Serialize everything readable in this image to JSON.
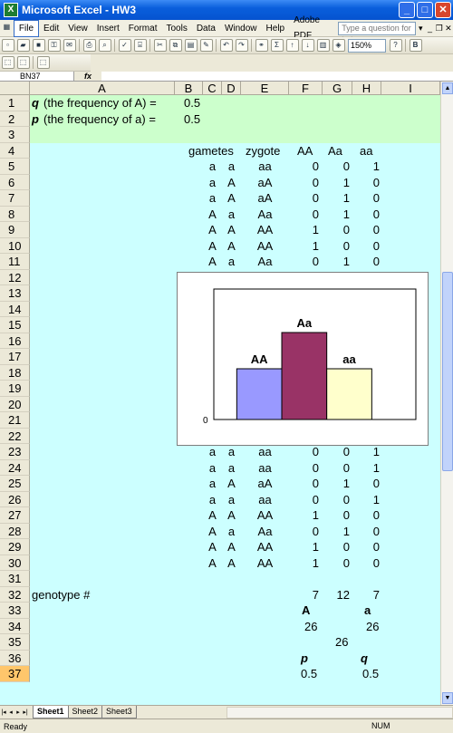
{
  "window": {
    "title": "Microsoft Excel - HW3"
  },
  "menu": {
    "items": [
      "File",
      "Edit",
      "View",
      "Insert",
      "Format",
      "Tools",
      "Data",
      "Window",
      "Help",
      "Adobe PDF"
    ],
    "help_placeholder": "Type a question for help"
  },
  "toolbar": {
    "zoom": "150%"
  },
  "formula_bar": {
    "name_box": "BN37",
    "fx": "fx",
    "value": ""
  },
  "columns": [
    "A",
    "B",
    "C",
    "D",
    "E",
    "F",
    "G",
    "H",
    "I"
  ],
  "rows": [
    "1",
    "2",
    "3",
    "4",
    "5",
    "6",
    "7",
    "8",
    "9",
    "10",
    "11",
    "12",
    "13",
    "14",
    "15",
    "16",
    "17",
    "18",
    "19",
    "20",
    "21",
    "22",
    "23",
    "24",
    "25",
    "26",
    "27",
    "28",
    "29",
    "30",
    "31",
    "32",
    "33",
    "34",
    "35",
    "36",
    "37"
  ],
  "cells": {
    "r1": {
      "label_sym": "q",
      "label": "(the frequency of A) =",
      "value": "0.5"
    },
    "r2": {
      "label_sym": "p",
      "label": "(the frequency of a) =",
      "value": "0.5"
    },
    "r4": {
      "gametes": "gametes",
      "zygote": "zygote",
      "AA": "AA",
      "Aa": "Aa",
      "aa": "aa"
    },
    "table": [
      {
        "g1": "a",
        "g2": "a",
        "z": "aa",
        "AA": "0",
        "Aa": "0",
        "aa": "1"
      },
      {
        "g1": "a",
        "g2": "A",
        "z": "aA",
        "AA": "0",
        "Aa": "1",
        "aa": "0"
      },
      {
        "g1": "a",
        "g2": "A",
        "z": "aA",
        "AA": "0",
        "Aa": "1",
        "aa": "0"
      },
      {
        "g1": "A",
        "g2": "a",
        "z": "Aa",
        "AA": "0",
        "Aa": "1",
        "aa": "0"
      },
      {
        "g1": "A",
        "g2": "A",
        "z": "AA",
        "AA": "1",
        "Aa": "0",
        "aa": "0"
      },
      {
        "g1": "A",
        "g2": "A",
        "z": "AA",
        "AA": "1",
        "Aa": "0",
        "aa": "0"
      },
      {
        "g1": "A",
        "g2": "a",
        "z": "Aa",
        "AA": "0",
        "Aa": "1",
        "aa": "0"
      }
    ],
    "table2": [
      {
        "g1": "a",
        "g2": "a",
        "z": "aa",
        "AA": "0",
        "Aa": "0",
        "aa": "1"
      },
      {
        "g1": "a",
        "g2": "a",
        "z": "aa",
        "AA": "0",
        "Aa": "0",
        "aa": "1"
      },
      {
        "g1": "a",
        "g2": "A",
        "z": "aA",
        "AA": "0",
        "Aa": "1",
        "aa": "0"
      },
      {
        "g1": "a",
        "g2": "a",
        "z": "aa",
        "AA": "0",
        "Aa": "0",
        "aa": "1"
      },
      {
        "g1": "A",
        "g2": "A",
        "z": "AA",
        "AA": "1",
        "Aa": "0",
        "aa": "0"
      },
      {
        "g1": "A",
        "g2": "a",
        "z": "Aa",
        "AA": "0",
        "Aa": "1",
        "aa": "0"
      },
      {
        "g1": "A",
        "g2": "A",
        "z": "AA",
        "AA": "1",
        "Aa": "0",
        "aa": "0"
      },
      {
        "g1": "A",
        "g2": "A",
        "z": "AA",
        "AA": "1",
        "Aa": "0",
        "aa": "0"
      }
    ],
    "r32": {
      "label": "genotype #",
      "AA": "7",
      "Aa": "12",
      "aa": "7"
    },
    "r33": {
      "A": "A",
      "a": "a"
    },
    "r34": {
      "A": "26",
      "a": "26"
    },
    "r35": {
      "total": "26"
    },
    "r36": {
      "p": "p",
      "q": "q"
    },
    "r37": {
      "p": "0.5",
      "q": "0.5"
    }
  },
  "chart_data": {
    "type": "bar",
    "categories": [
      "AA",
      "Aa",
      "aa"
    ],
    "values": [
      7,
      12,
      7
    ],
    "colors": [
      "#9999ff",
      "#993366",
      "#ffffcc"
    ],
    "ylim": [
      0,
      18
    ],
    "yticks": [
      "0"
    ],
    "data_labels": [
      "AA",
      "Aa",
      "aa"
    ]
  },
  "tabs": [
    "Sheet1",
    "Sheet2",
    "Sheet3"
  ],
  "status": {
    "left": "Ready",
    "num": "NUM"
  }
}
